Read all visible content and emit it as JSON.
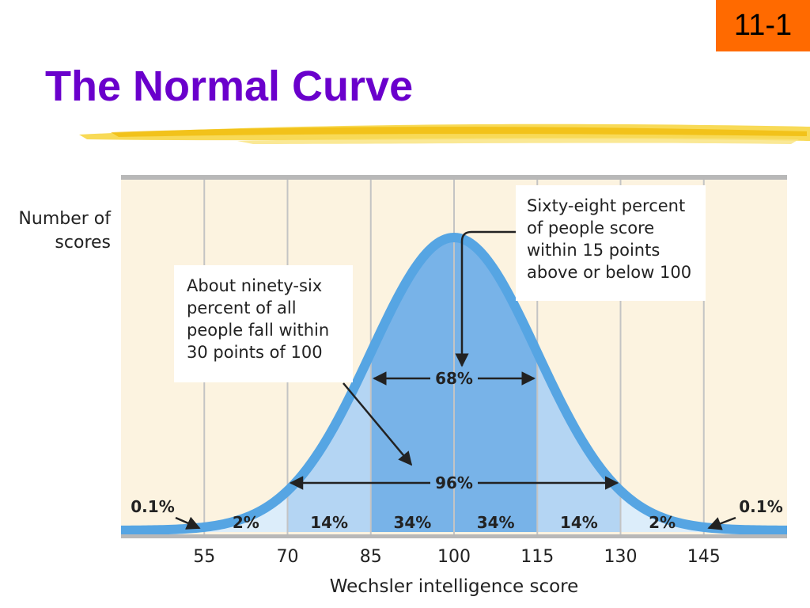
{
  "chart_data": {
    "type": "normal",
    "slide_number": "11-1",
    "title": "The Normal Curve",
    "y_label": "Number of scores",
    "x_label": "Wechsler intelligence score",
    "xlim": [
      40,
      160
    ],
    "xticks": [
      55,
      70,
      85,
      100,
      115,
      130,
      145
    ],
    "grid": true,
    "bands": {
      "values": [
        0.1,
        2,
        14,
        34,
        34,
        14,
        2,
        0.1
      ],
      "value_labels": [
        "0.1%",
        "2%",
        "14%",
        "34%",
        "34%",
        "14%",
        "2%",
        "0.1%"
      ],
      "colors": [
        "#dcedfa",
        "#dcedfa",
        "#b4d5f3",
        "#78b3e8",
        "#78b3e8",
        "#b4d5f3",
        "#dcedfa",
        "#dcedfa"
      ]
    },
    "curve_color": "#56a5e3",
    "annotations": {
      "span_68": "68%",
      "span_96": "96%",
      "callout_68": "Sixty-eight percent of people score within 15 points above or below 100",
      "callout_96": "About ninety-six percent of all people fall within 30 points of 100"
    }
  }
}
